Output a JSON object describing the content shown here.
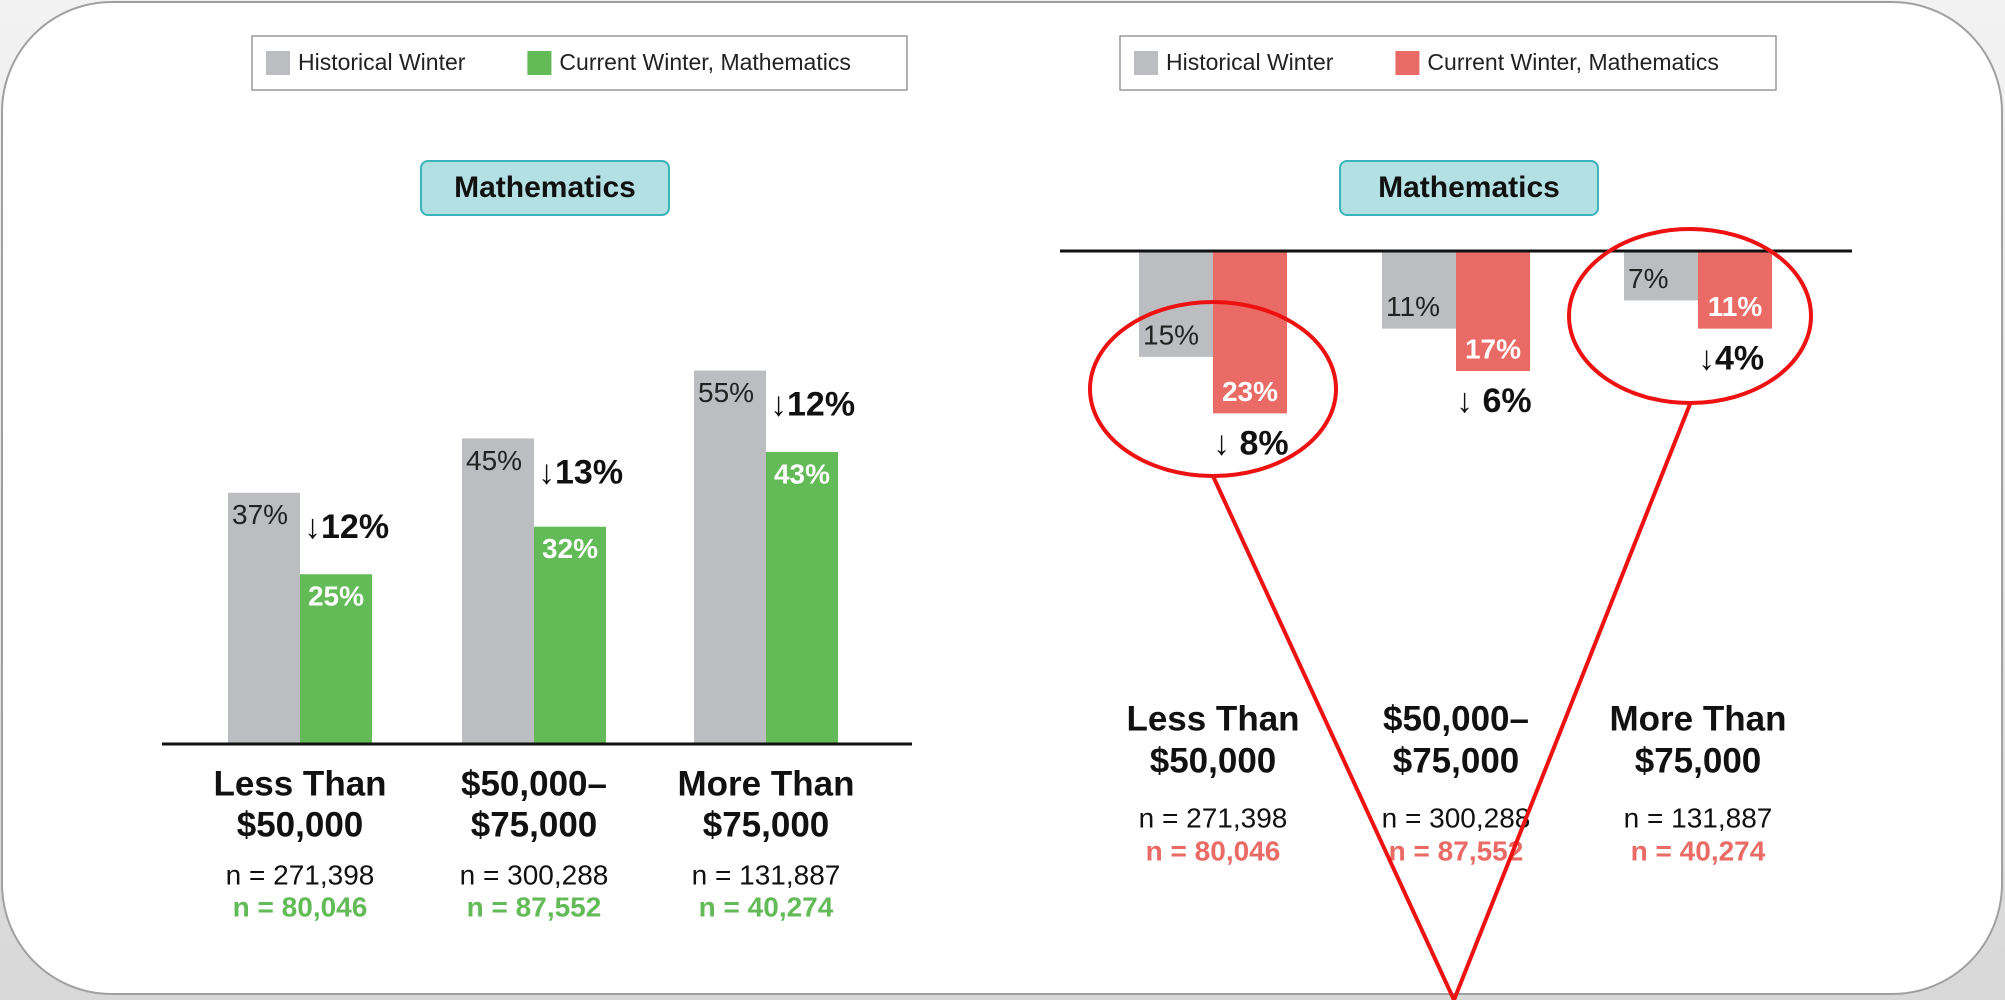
{
  "chart_data": [
    {
      "type": "bar",
      "title": "Mathematics",
      "categories": [
        [
          "Less Than",
          "$50,000"
        ],
        [
          "$50,000–",
          "$75,000"
        ],
        [
          "More Than",
          "$75,000"
        ]
      ],
      "series": [
        {
          "name": "Historical Winter",
          "color": "#bcbdc1",
          "values": [
            37,
            45,
            55
          ],
          "value_labels": [
            "37%",
            "45%",
            "55%"
          ]
        },
        {
          "name": "Current Winter, Mathematics",
          "color": "#62bb57",
          "values": [
            25,
            32,
            43
          ],
          "value_labels": [
            "25%",
            "32%",
            "43%"
          ]
        }
      ],
      "annotations": [
        "↓12%",
        "↓13%",
        "↓12%"
      ],
      "n_historical": [
        "n = 271,398",
        "n = 300,288",
        "n = 131,887"
      ],
      "n_current": [
        "n = 80,046",
        "n = 87,552",
        "n = 40,274"
      ],
      "ylim": [
        0,
        60
      ]
    },
    {
      "type": "bar",
      "title": "Mathematics",
      "inverted_y": true,
      "categories": [
        [
          "Less Than",
          "$50,000"
        ],
        [
          "$50,000–",
          "$75,000"
        ],
        [
          "More Than",
          "$75,000"
        ]
      ],
      "series": [
        {
          "name": "Historical Winter",
          "color": "#bcbdc1",
          "values": [
            15,
            11,
            7
          ],
          "value_labels": [
            "15%",
            "11%",
            "7%"
          ]
        },
        {
          "name": "Current Winter, Mathematics",
          "color": "#ea6b66",
          "values": [
            23,
            17,
            11
          ],
          "value_labels": [
            "23%",
            "17%",
            "11%"
          ]
        }
      ],
      "annotations": [
        "↓ 8%",
        "↓ 6%",
        "↓4%"
      ],
      "n_historical": [
        "n = 271,398",
        "n = 300,288",
        "n = 131,887"
      ],
      "n_current": [
        "n = 80,046",
        "n = 87,552",
        "n = 40,274"
      ],
      "ylim": [
        0,
        60
      ]
    }
  ]
}
